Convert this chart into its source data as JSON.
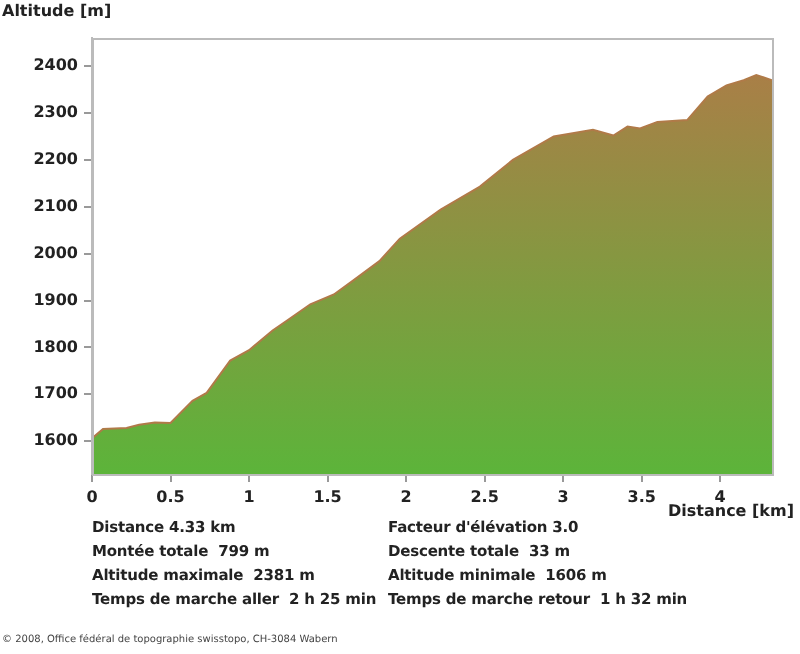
{
  "chart_data": {
    "type": "area",
    "ylabel": "Altitude [m]",
    "xlabel": "Distance [km]",
    "xlim": [
      0,
      4.33
    ],
    "ylim": [
      1530,
      2460
    ],
    "xticks": [
      0,
      0.5,
      1,
      1.5,
      2,
      2.5,
      3,
      3.5,
      4
    ],
    "yticks": [
      1600,
      1700,
      1800,
      1900,
      2000,
      2100,
      2200,
      2300,
      2400
    ],
    "grid": false,
    "legend": false,
    "series": [
      {
        "color": "#b07a48",
        "x": [
          0,
          0.07,
          0.22,
          0.3,
          0.4,
          0.5,
          0.64,
          0.73,
          0.88,
          1.0,
          1.15,
          1.24,
          1.39,
          1.54,
          1.66,
          1.83,
          1.96,
          2.22,
          2.47,
          2.68,
          2.94,
          3.19,
          3.32,
          3.41,
          3.49,
          3.6,
          3.79,
          3.92,
          4.04,
          4.15,
          4.23,
          4.33
        ],
        "values": [
          1606,
          1626,
          1628,
          1635,
          1640,
          1639,
          1686,
          1703,
          1772,
          1794,
          1836,
          1857,
          1892,
          1913,
          1942,
          1984,
          2032,
          2094,
          2143,
          2200,
          2250,
          2264,
          2252,
          2271,
          2267,
          2281,
          2285,
          2335,
          2359,
          2370,
          2381,
          2370
        ]
      }
    ],
    "annotations": [
      "Distance 4.33 km",
      "Facteur d'élévation 3.0",
      "Montée totale  799 m",
      "Descente totale  33 m",
      "Altitude maximale  2381 m",
      "Altitude minimale  1606 m",
      "Temps de marche aller  2 h 25 min",
      "Temps de marche retour  1 h 32 min",
      "© 2008, Office fédéral de topographie swisstopo, CH-3084 Wabern"
    ]
  }
}
